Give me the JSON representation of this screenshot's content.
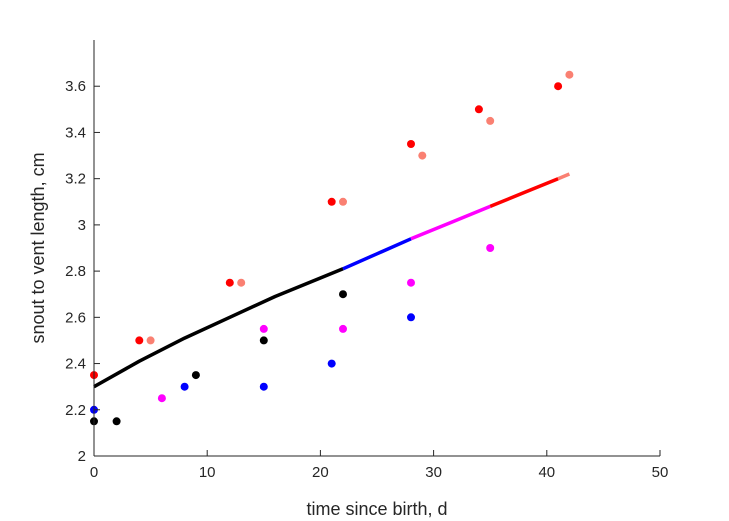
{
  "chart_data": {
    "type": "scatter",
    "title": "",
    "xlabel": "time since birth, d",
    "ylabel": "snout to vent length, cm",
    "xlim": [
      0,
      50
    ],
    "ylim": [
      2,
      3.8
    ],
    "xticks": [
      "0",
      "10",
      "20",
      "30",
      "40",
      "50"
    ],
    "yticks": [
      "2",
      "2.2",
      "2.4",
      "2.6",
      "2.8",
      "3",
      "3.2",
      "3.4",
      "3.6"
    ],
    "grid": false,
    "series": [
      {
        "color": "#000000",
        "points": [
          [
            0,
            2.15
          ],
          [
            2,
            2.15
          ],
          [
            9,
            2.35
          ],
          [
            15,
            2.5
          ],
          [
            22,
            2.7
          ]
        ]
      },
      {
        "color": "#0000ff",
        "points": [
          [
            0,
            2.2
          ],
          [
            8,
            2.3
          ],
          [
            15,
            2.3
          ],
          [
            21,
            2.4
          ],
          [
            28,
            2.6
          ]
        ]
      },
      {
        "color": "#ff00ff",
        "points": [
          [
            6,
            2.25
          ],
          [
            15,
            2.55
          ],
          [
            22,
            2.55
          ],
          [
            28,
            2.75
          ],
          [
            35,
            2.9
          ]
        ]
      },
      {
        "color": "#ff0000",
        "points": [
          [
            0,
            2.35
          ],
          [
            4,
            2.5
          ],
          [
            12,
            2.75
          ],
          [
            21,
            3.1
          ],
          [
            28,
            3.35
          ],
          [
            34,
            3.5
          ],
          [
            41,
            3.6
          ]
        ]
      },
      {
        "color": "#fa8072",
        "points": [
          [
            5,
            2.5
          ],
          [
            13,
            2.75
          ],
          [
            22,
            3.1
          ],
          [
            29,
            3.3
          ],
          [
            35,
            3.45
          ],
          [
            42,
            3.65
          ]
        ]
      }
    ],
    "fit_line": [
      {
        "color": "#000000",
        "x": [
          0,
          4,
          8,
          12,
          16,
          20,
          22
        ],
        "y": [
          2.3,
          2.41,
          2.51,
          2.6,
          2.69,
          2.77,
          2.81
        ]
      },
      {
        "color": "#0000ff",
        "x": [
          22,
          25,
          28
        ],
        "y": [
          2.81,
          2.875,
          2.94
        ]
      },
      {
        "color": "#ff00ff",
        "x": [
          28,
          31.5,
          35
        ],
        "y": [
          2.94,
          3.01,
          3.08
        ]
      },
      {
        "color": "#ff0000",
        "x": [
          35,
          38,
          41
        ],
        "y": [
          3.08,
          3.14,
          3.2
        ]
      },
      {
        "color": "#fa8072",
        "x": [
          41,
          42
        ],
        "y": [
          3.2,
          3.22
        ]
      }
    ]
  }
}
